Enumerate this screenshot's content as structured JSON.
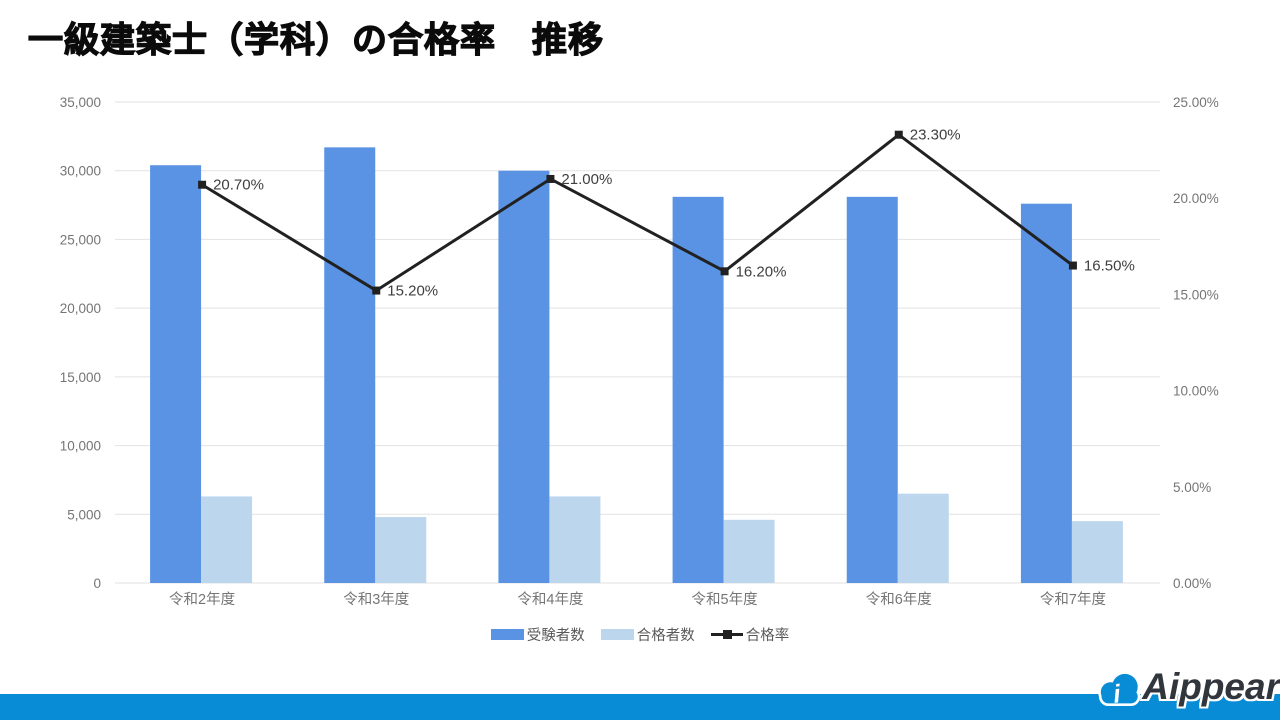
{
  "title": "一級建築士（学科）の合格率　推移",
  "chart_data": {
    "type": "bar",
    "subtype": "combo-bar-line",
    "categories": [
      "令和2年度",
      "令和3年度",
      "令和4年度",
      "令和5年度",
      "令和6年度",
      "令和7年度"
    ],
    "bar_series": [
      {
        "name": "受験者数",
        "color": "#5a93e3",
        "axis": "left",
        "values": [
          30400,
          31700,
          30000,
          28100,
          28100,
          27600
        ]
      },
      {
        "name": "合格者数",
        "color": "#bcd6ee",
        "axis": "left",
        "values": [
          6300,
          4800,
          6300,
          4600,
          6500,
          4500
        ]
      }
    ],
    "line_series": {
      "name": "合格率",
      "color": "#212121",
      "axis": "right",
      "values": [
        20.7,
        15.2,
        21.0,
        16.2,
        23.3,
        16.5
      ],
      "labels": [
        "20.70%",
        "15.20%",
        "21.00%",
        "16.20%",
        "23.30%",
        "16.50%"
      ]
    },
    "left_axis": {
      "min": 0,
      "max": 35000,
      "step": 5000,
      "tick_values": [
        0,
        5000,
        10000,
        15000,
        20000,
        25000,
        30000,
        35000
      ],
      "tick_labels": [
        "0",
        "5,000",
        "10,000",
        "15,000",
        "20,000",
        "25,000",
        "30,000",
        "35,000"
      ]
    },
    "right_axis": {
      "min": 0,
      "max": 25,
      "step": 5,
      "tick_values": [
        0,
        5,
        10,
        15,
        20,
        25
      ],
      "tick_labels": [
        "0.00%",
        "5.00%",
        "10.00%",
        "15.00%",
        "20.00%",
        "25.00%"
      ]
    },
    "grid": true,
    "legend_position": "bottom",
    "colors": {
      "gridline": "#e2e2e2",
      "tick_text": "#757575",
      "data_label_text": "#3f3f3f"
    }
  },
  "footer": {
    "logo_text": "Aippear",
    "band_color": "#098cd6"
  }
}
